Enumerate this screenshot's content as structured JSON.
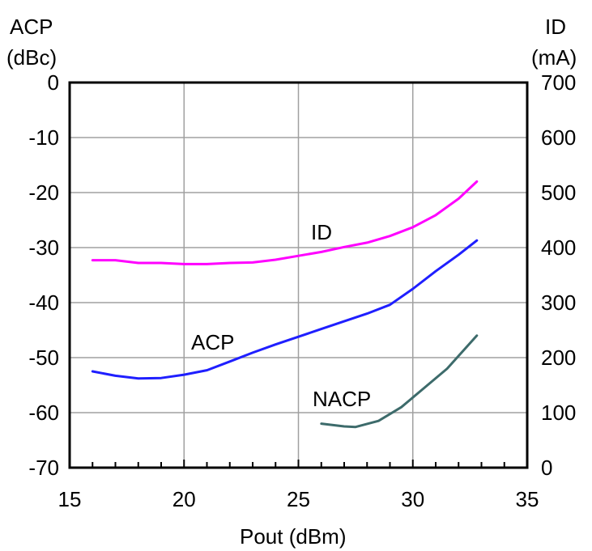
{
  "chart_data": {
    "type": "line",
    "title": "",
    "xlabel": "Pout (dBm)",
    "xlim": [
      15,
      35
    ],
    "x_ticks": [
      "15",
      "20",
      "25",
      "30",
      "35"
    ],
    "y_left": {
      "label_line1": "ACP",
      "label_line2": "(dBc)",
      "lim": [
        -70,
        0
      ],
      "ticks": [
        "0",
        "-10",
        "-20",
        "-30",
        "-40",
        "-50",
        "-60",
        "-70"
      ]
    },
    "y_right": {
      "label_line1": "ID",
      "label_line2": "(mA)",
      "lim": [
        0,
        700
      ],
      "ticks": [
        "700",
        "600",
        "500",
        "400",
        "300",
        "200",
        "100",
        "0"
      ]
    },
    "grid": true,
    "series": [
      {
        "name": "ID",
        "axis": "right",
        "color": "#ff00ff",
        "points": [
          [
            16,
            377
          ],
          [
            17,
            377
          ],
          [
            18,
            372
          ],
          [
            19,
            372
          ],
          [
            20,
            370
          ],
          [
            21,
            370
          ],
          [
            22,
            372
          ],
          [
            23,
            373
          ],
          [
            24,
            378
          ],
          [
            25,
            385
          ],
          [
            26,
            392
          ],
          [
            27,
            401
          ],
          [
            28,
            409
          ],
          [
            29,
            421
          ],
          [
            30,
            437
          ],
          [
            31,
            459
          ],
          [
            32,
            489
          ],
          [
            32.8,
            520
          ]
        ]
      },
      {
        "name": "ACP",
        "axis": "left",
        "color": "#1f1fff",
        "points": [
          [
            16,
            -52.5
          ],
          [
            17,
            -53.3
          ],
          [
            18,
            -53.8
          ],
          [
            19,
            -53.7
          ],
          [
            20,
            -53.1
          ],
          [
            21,
            -52.3
          ],
          [
            22,
            -50.7
          ],
          [
            23,
            -49.1
          ],
          [
            24,
            -47.6
          ],
          [
            25,
            -46.2
          ],
          [
            26,
            -44.8
          ],
          [
            27,
            -43.4
          ],
          [
            28,
            -42
          ],
          [
            29,
            -40.4
          ],
          [
            30,
            -37.5
          ],
          [
            31,
            -34.3
          ],
          [
            32,
            -31.3
          ],
          [
            32.8,
            -28.7
          ]
        ]
      },
      {
        "name": "NACP",
        "axis": "left",
        "color": "#3d6b6b",
        "points": [
          [
            26,
            -62
          ],
          [
            27,
            -62.5
          ],
          [
            27.5,
            -62.6
          ],
          [
            28.5,
            -61.5
          ],
          [
            29.5,
            -59
          ],
          [
            30.5,
            -55.5
          ],
          [
            31.5,
            -52
          ],
          [
            32.8,
            -46
          ]
        ]
      }
    ]
  },
  "colors": {
    "frame": "#000000",
    "grid": "#a0a0a0"
  }
}
